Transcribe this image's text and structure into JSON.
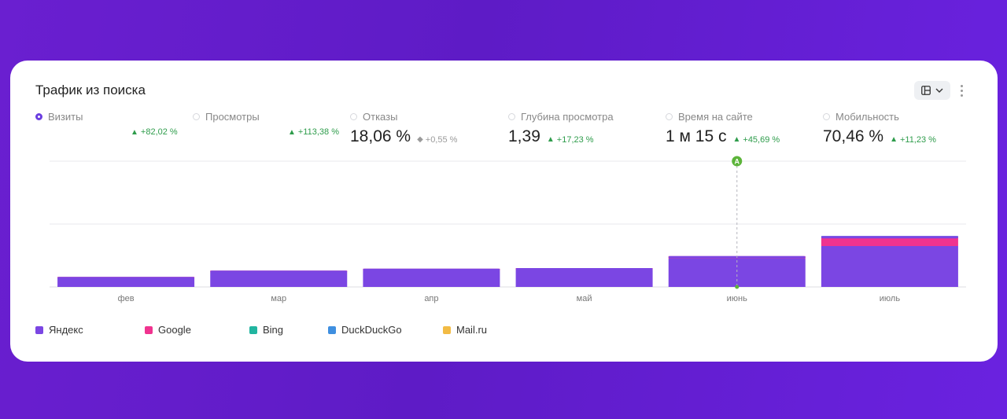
{
  "widget": {
    "title": "Трафик из поиска"
  },
  "metrics": [
    {
      "label": "Визиты",
      "value": "",
      "delta": "+82,02 %",
      "trend": "up",
      "selected": true
    },
    {
      "label": "Просмотры",
      "value": "",
      "delta": "+113,38 %",
      "trend": "up",
      "selected": false
    },
    {
      "label": "Отказы",
      "value": "18,06 %",
      "delta": "+0,55 %",
      "trend": "neutral",
      "selected": false
    },
    {
      "label": "Глубина просмотра",
      "value": "1,39",
      "delta": "+17,23 %",
      "trend": "up",
      "selected": false
    },
    {
      "label": "Время на сайте",
      "value": "1 м 15 с",
      "delta": "+45,69 %",
      "trend": "up",
      "selected": false
    },
    {
      "label": "Мобильность",
      "value": "70,46 %",
      "delta": "+11,23 %",
      "trend": "up",
      "selected": false
    }
  ],
  "annotation": {
    "label": "A",
    "category": "июнь"
  },
  "icons": {
    "view": "table-view-icon",
    "dropdown": "chevron-down-icon",
    "menu": "more-vertical-icon"
  },
  "colors": {
    "yandex": "#7b46e3",
    "google": "#f0338f",
    "bing": "#21b5a0",
    "duckduckgo": "#3f8fe0",
    "mailru": "#f2bb45",
    "up": "#2e9c4b",
    "accent": "#6b3ee0"
  },
  "legend": [
    "Яндекс",
    "Google",
    "Bing",
    "DuckDuckGo",
    "Mail.ru"
  ],
  "chart_data": {
    "type": "bar",
    "stacked": true,
    "categories": [
      "фев",
      "мар",
      "апр",
      "май",
      "июнь",
      "июль"
    ],
    "series": [
      {
        "name": "Яндекс",
        "values": [
          14,
          23,
          26,
          27,
          45,
          65
        ]
      },
      {
        "name": "Google",
        "values": [
          2,
          3,
          3,
          3,
          4,
          14
        ]
      },
      {
        "name": "Bing",
        "values": [
          0,
          0,
          0,
          0,
          0,
          1
        ]
      },
      {
        "name": "DuckDuckGo",
        "values": [
          0,
          0,
          0,
          0,
          0,
          1
        ]
      },
      {
        "name": "Mail.ru",
        "values": [
          0,
          0,
          0,
          0,
          0,
          0
        ]
      }
    ],
    "ylim": [
      0,
      200
    ],
    "grid": true,
    "legend_position": "bottom"
  }
}
